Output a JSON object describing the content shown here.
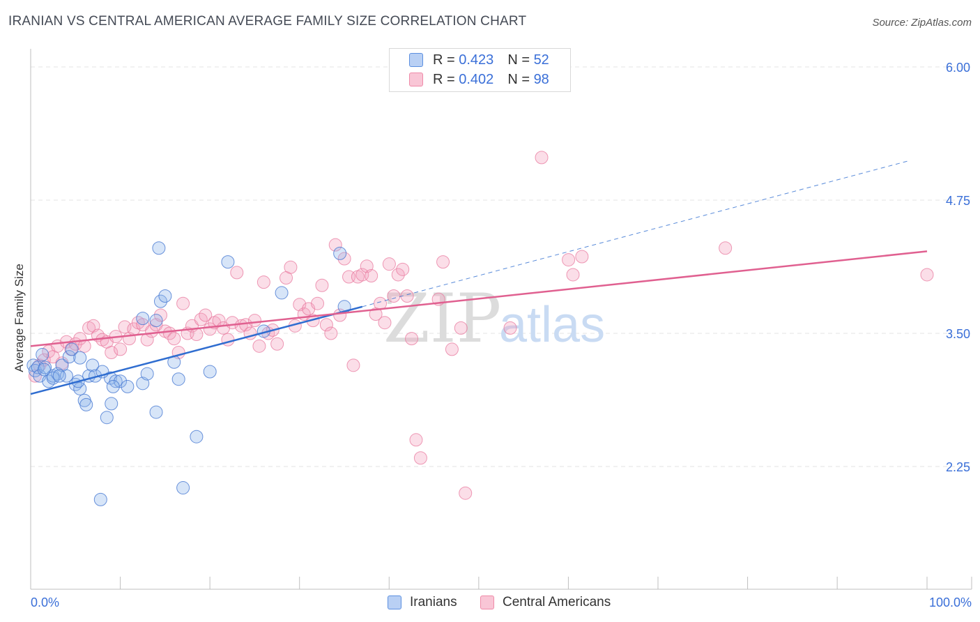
{
  "title": "IRANIAN VS CENTRAL AMERICAN AVERAGE FAMILY SIZE CORRELATION CHART",
  "source": "Source: ZipAtlas.com",
  "watermark": {
    "zip": "ZIP",
    "atlas": "atlas"
  },
  "legend": {
    "r_label": "R =",
    "n_label": "N =",
    "rows": [
      {
        "r": "0.423",
        "n": "52"
      },
      {
        "r": "0.402",
        "n": "98"
      }
    ]
  },
  "colors": {
    "iranians": "#5b8fe0",
    "central_americans": "#ef8aa8",
    "iranians_line": "#2f6dd0",
    "central_americans_line": "#e06090",
    "axis_text": "#3a6fd8"
  },
  "chart_data": {
    "type": "scatter",
    "title": "IRANIAN VS CENTRAL AMERICAN AVERAGE FAMILY SIZE CORRELATION CHART",
    "xlabel": "",
    "ylabel": "Average Family Size",
    "xlim": [
      0,
      100
    ],
    "ylim": [
      1.2,
      6.2
    ],
    "x_tick_labels": [
      "0.0%",
      "100.0%"
    ],
    "y_ticks": [
      2.25,
      3.5,
      4.75,
      6.0
    ],
    "y_tick_labels": [
      "2.25",
      "3.50",
      "4.75",
      "6.00"
    ],
    "grid": true,
    "legend_position": "top-center",
    "series": [
      {
        "name": "Iranians",
        "trend": {
          "x0": 0,
          "y0": 2.93,
          "x1": 37,
          "y1": 3.75,
          "dashed_to_x": 98,
          "dashed_to_y": 5.12
        },
        "points": [
          [
            0.3,
            3.2
          ],
          [
            0.5,
            3.15
          ],
          [
            0.8,
            3.18
          ],
          [
            1.0,
            3.1
          ],
          [
            1.3,
            3.3
          ],
          [
            1.6,
            3.18
          ],
          [
            2.0,
            3.05
          ],
          [
            2.5,
            3.1
          ],
          [
            3.0,
            3.12
          ],
          [
            3.5,
            3.2
          ],
          [
            4.0,
            3.1
          ],
          [
            4.3,
            3.28
          ],
          [
            4.6,
            3.35
          ],
          [
            5.0,
            3.02
          ],
          [
            5.5,
            2.98
          ],
          [
            5.5,
            3.27
          ],
          [
            6.0,
            2.87
          ],
          [
            6.2,
            2.83
          ],
          [
            6.5,
            3.1
          ],
          [
            6.9,
            3.2
          ],
          [
            7.2,
            3.1
          ],
          [
            8.5,
            2.71
          ],
          [
            8.9,
            3.08
          ],
          [
            9.0,
            2.84
          ],
          [
            9.5,
            3.05
          ],
          [
            10.0,
            3.05
          ],
          [
            10.8,
            3.0
          ],
          [
            12.5,
            3.64
          ],
          [
            12.5,
            3.03
          ],
          [
            13.0,
            3.12
          ],
          [
            14.0,
            2.76
          ],
          [
            14.3,
            4.3
          ],
          [
            14.5,
            3.8
          ],
          [
            15.0,
            3.85
          ],
          [
            16.0,
            3.23
          ],
          [
            16.5,
            3.07
          ],
          [
            17.0,
            2.05
          ],
          [
            18.5,
            2.53
          ],
          [
            20.0,
            3.14
          ],
          [
            22.0,
            4.17
          ],
          [
            26.0,
            3.52
          ],
          [
            28.0,
            3.88
          ],
          [
            35.0,
            3.75
          ],
          [
            1.5,
            3.16
          ],
          [
            2.5,
            3.08
          ],
          [
            3.2,
            3.1
          ],
          [
            7.8,
            1.94
          ],
          [
            14.0,
            3.62
          ],
          [
            34.5,
            4.25
          ],
          [
            8.0,
            3.14
          ],
          [
            5.3,
            3.05
          ],
          [
            9.2,
            3.0
          ]
        ]
      },
      {
        "name": "Central Americans",
        "trend": {
          "x0": 0,
          "y0": 3.38,
          "x1": 100,
          "y1": 4.27
        },
        "points": [
          [
            0.5,
            3.1
          ],
          [
            1.0,
            3.2
          ],
          [
            1.5,
            3.25
          ],
          [
            2.0,
            3.33
          ],
          [
            2.5,
            3.28
          ],
          [
            3.0,
            3.38
          ],
          [
            3.5,
            3.22
          ],
          [
            4.0,
            3.42
          ],
          [
            4.5,
            3.35
          ],
          [
            5.0,
            3.4
          ],
          [
            5.5,
            3.45
          ],
          [
            6.0,
            3.38
          ],
          [
            6.5,
            3.55
          ],
          [
            7.0,
            3.57
          ],
          [
            7.5,
            3.48
          ],
          [
            8.0,
            3.44
          ],
          [
            8.5,
            3.42
          ],
          [
            9.0,
            3.32
          ],
          [
            9.5,
            3.47
          ],
          [
            10.0,
            3.35
          ],
          [
            10.5,
            3.56
          ],
          [
            11.0,
            3.45
          ],
          [
            11.5,
            3.54
          ],
          [
            12.0,
            3.6
          ],
          [
            12.5,
            3.58
          ],
          [
            13.0,
            3.44
          ],
          [
            13.5,
            3.52
          ],
          [
            14.0,
            3.58
          ],
          [
            14.5,
            3.67
          ],
          [
            15.0,
            3.52
          ],
          [
            15.5,
            3.5
          ],
          [
            16.0,
            3.45
          ],
          [
            16.5,
            3.32
          ],
          [
            17.0,
            3.78
          ],
          [
            17.5,
            3.5
          ],
          [
            18.0,
            3.57
          ],
          [
            18.5,
            3.49
          ],
          [
            19.0,
            3.63
          ],
          [
            19.5,
            3.67
          ],
          [
            20.0,
            3.54
          ],
          [
            20.5,
            3.6
          ],
          [
            21.0,
            3.62
          ],
          [
            21.5,
            3.55
          ],
          [
            22.0,
            3.44
          ],
          [
            22.5,
            3.6
          ],
          [
            23.0,
            4.07
          ],
          [
            23.5,
            3.57
          ],
          [
            24.0,
            3.58
          ],
          [
            24.5,
            3.5
          ],
          [
            25.0,
            3.62
          ],
          [
            25.5,
            3.38
          ],
          [
            26.0,
            3.98
          ],
          [
            26.5,
            3.5
          ],
          [
            27.0,
            3.53
          ],
          [
            27.5,
            3.4
          ],
          [
            28.5,
            4.02
          ],
          [
            29.0,
            4.12
          ],
          [
            29.5,
            3.57
          ],
          [
            30.0,
            3.77
          ],
          [
            30.5,
            3.68
          ],
          [
            31.0,
            3.73
          ],
          [
            31.5,
            3.62
          ],
          [
            32.0,
            3.78
          ],
          [
            32.5,
            3.95
          ],
          [
            33.0,
            3.58
          ],
          [
            33.5,
            3.5
          ],
          [
            34.0,
            4.33
          ],
          [
            34.5,
            3.67
          ],
          [
            35.0,
            4.2
          ],
          [
            35.5,
            4.03
          ],
          [
            36.0,
            3.2
          ],
          [
            36.5,
            4.03
          ],
          [
            37.0,
            4.05
          ],
          [
            37.5,
            4.13
          ],
          [
            38.0,
            4.04
          ],
          [
            38.5,
            3.68
          ],
          [
            39.0,
            3.78
          ],
          [
            39.5,
            3.6
          ],
          [
            40.0,
            4.15
          ],
          [
            40.5,
            3.85
          ],
          [
            41.0,
            4.05
          ],
          [
            41.5,
            4.1
          ],
          [
            42.0,
            3.85
          ],
          [
            42.5,
            3.45
          ],
          [
            43.0,
            2.5
          ],
          [
            43.5,
            2.33
          ],
          [
            45.5,
            3.82
          ],
          [
            46.0,
            4.17
          ],
          [
            47.0,
            3.35
          ],
          [
            48.0,
            3.55
          ],
          [
            48.5,
            2.0
          ],
          [
            53.5,
            3.55
          ],
          [
            57.0,
            5.15
          ],
          [
            60.0,
            4.19
          ],
          [
            60.5,
            4.05
          ],
          [
            61.5,
            4.22
          ],
          [
            77.5,
            4.3
          ],
          [
            100.0,
            4.05
          ]
        ]
      }
    ]
  }
}
